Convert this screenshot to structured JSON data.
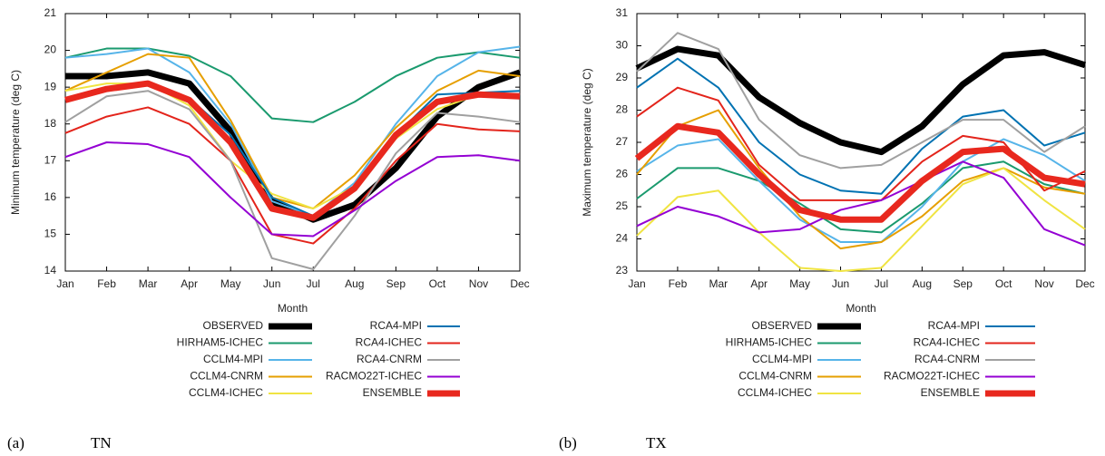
{
  "chart_data": [
    {
      "type": "line",
      "caption_label": "(a)",
      "caption": "TN",
      "xlabel": "Month",
      "ylabel": "Minimum temperature (deg C)",
      "categories": [
        "Jan",
        "Feb",
        "Mar",
        "Apr",
        "May",
        "Jun",
        "Jul",
        "Aug",
        "Sep",
        "Oct",
        "Nov",
        "Dec"
      ],
      "ylim": [
        14,
        21
      ],
      "yticks": [
        14,
        15,
        16,
        17,
        18,
        19,
        20,
        21
      ],
      "grid": false,
      "series": [
        {
          "name": "OBSERVED",
          "color": "#000000",
          "values": [
            19.3,
            19.3,
            19.4,
            19.1,
            17.8,
            15.9,
            15.4,
            15.8,
            16.8,
            18.2,
            19.0,
            19.4
          ]
        },
        {
          "name": "HIRHAM5-ICHEC",
          "color": "#1a9a6e",
          "values": [
            19.8,
            20.05,
            20.05,
            19.85,
            19.3,
            18.15,
            18.05,
            18.6,
            19.3,
            19.8,
            19.95,
            19.8
          ]
        },
        {
          "name": "CCLM4-MPI",
          "color": "#56b4e9",
          "values": [
            19.8,
            19.9,
            20.05,
            19.4,
            18.0,
            15.9,
            15.5,
            16.4,
            18.0,
            19.3,
            19.95,
            20.1
          ]
        },
        {
          "name": "CCLM4-CNRM",
          "color": "#e69f00",
          "values": [
            18.9,
            19.4,
            19.9,
            19.8,
            18.1,
            16.0,
            15.7,
            16.6,
            17.9,
            18.9,
            19.45,
            19.3
          ]
        },
        {
          "name": "CCLM4-ICHEC",
          "color": "#f0e442",
          "values": [
            18.9,
            19.1,
            19.1,
            18.5,
            17.0,
            16.1,
            15.7,
            16.3,
            17.6,
            18.4,
            18.8,
            18.8
          ]
        },
        {
          "name": "RCA4-MPI",
          "color": "#0072b2",
          "values": [
            18.7,
            19.0,
            19.1,
            18.7,
            17.7,
            16.0,
            15.5,
            16.3,
            17.7,
            18.8,
            18.85,
            18.9
          ]
        },
        {
          "name": "RCA4-ICHEC",
          "color": "#e3241b",
          "values": [
            17.75,
            18.2,
            18.45,
            18.0,
            17.0,
            15.0,
            14.75,
            15.7,
            17.0,
            18.0,
            17.85,
            17.8
          ]
        },
        {
          "name": "RCA4-CNRM",
          "color": "#a0a0a0",
          "values": [
            18.05,
            18.75,
            18.9,
            18.4,
            17.0,
            14.35,
            14.05,
            15.5,
            17.2,
            18.3,
            18.2,
            18.05
          ]
        },
        {
          "name": "RACMO22T-ICHEC",
          "color": "#9400d3",
          "values": [
            17.1,
            17.5,
            17.45,
            17.1,
            16.0,
            15.0,
            14.95,
            15.65,
            16.45,
            17.1,
            17.15,
            17.0
          ]
        },
        {
          "name": "ENSEMBLE",
          "color": "#e8281e",
          "values": [
            18.65,
            18.95,
            19.1,
            18.65,
            17.5,
            15.7,
            15.45,
            16.25,
            17.7,
            18.6,
            18.8,
            18.75
          ]
        }
      ]
    },
    {
      "type": "line",
      "caption_label": "(b)",
      "caption": "TX",
      "xlabel": "Month",
      "ylabel": "Maximum temperature (deg C)",
      "categories": [
        "Jan",
        "Feb",
        "Mar",
        "Apr",
        "May",
        "Jun",
        "Jul",
        "Aug",
        "Sep",
        "Oct",
        "Nov",
        "Dec"
      ],
      "ylim": [
        23,
        31
      ],
      "yticks": [
        23,
        24,
        25,
        26,
        27,
        28,
        29,
        30,
        31
      ],
      "grid": false,
      "series": [
        {
          "name": "OBSERVED",
          "color": "#000000",
          "values": [
            29.3,
            29.9,
            29.7,
            28.4,
            27.6,
            27.0,
            26.7,
            27.5,
            28.8,
            29.7,
            29.8,
            29.4
          ]
        },
        {
          "name": "HIRHAM5-ICHEC",
          "color": "#1a9a6e",
          "values": [
            25.25,
            26.2,
            26.2,
            25.8,
            25.1,
            24.3,
            24.2,
            25.1,
            26.2,
            26.4,
            25.7,
            25.4
          ]
        },
        {
          "name": "CCLM4-MPI",
          "color": "#56b4e9",
          "values": [
            26.1,
            26.9,
            27.1,
            25.8,
            24.6,
            23.9,
            23.9,
            25.0,
            26.4,
            27.1,
            26.6,
            25.8
          ]
        },
        {
          "name": "CCLM4-CNRM",
          "color": "#e69f00",
          "values": [
            26.0,
            27.5,
            28.0,
            26.2,
            24.7,
            23.7,
            23.9,
            24.7,
            25.8,
            26.2,
            25.6,
            25.4
          ]
        },
        {
          "name": "CCLM4-ICHEC",
          "color": "#f0e442",
          "values": [
            24.1,
            25.3,
            25.5,
            24.2,
            23.1,
            23.0,
            23.1,
            24.4,
            25.7,
            26.2,
            25.2,
            24.3
          ]
        },
        {
          "name": "RCA4-MPI",
          "color": "#0072b2",
          "values": [
            28.7,
            29.6,
            28.7,
            27.0,
            26.0,
            25.5,
            25.4,
            26.8,
            27.8,
            28.0,
            26.9,
            27.3
          ]
        },
        {
          "name": "RCA4-ICHEC",
          "color": "#e3241b",
          "values": [
            27.8,
            28.7,
            28.3,
            26.3,
            25.2,
            25.2,
            25.2,
            26.4,
            27.2,
            27.0,
            25.5,
            26.1
          ]
        },
        {
          "name": "RCA4-CNRM",
          "color": "#a0a0a0",
          "values": [
            29.2,
            30.4,
            29.9,
            27.7,
            26.6,
            26.2,
            26.3,
            27.0,
            27.7,
            27.7,
            26.7,
            27.5
          ]
        },
        {
          "name": "RACMO22T-ICHEC",
          "color": "#9400d3",
          "values": [
            24.4,
            25.0,
            24.7,
            24.2,
            24.3,
            24.9,
            25.2,
            25.8,
            26.4,
            25.9,
            24.3,
            23.8
          ]
        },
        {
          "name": "ENSEMBLE",
          "color": "#e8281e",
          "values": [
            26.5,
            27.5,
            27.3,
            26.0,
            24.9,
            24.6,
            24.6,
            25.8,
            26.7,
            26.8,
            25.9,
            25.7
          ]
        }
      ]
    }
  ]
}
